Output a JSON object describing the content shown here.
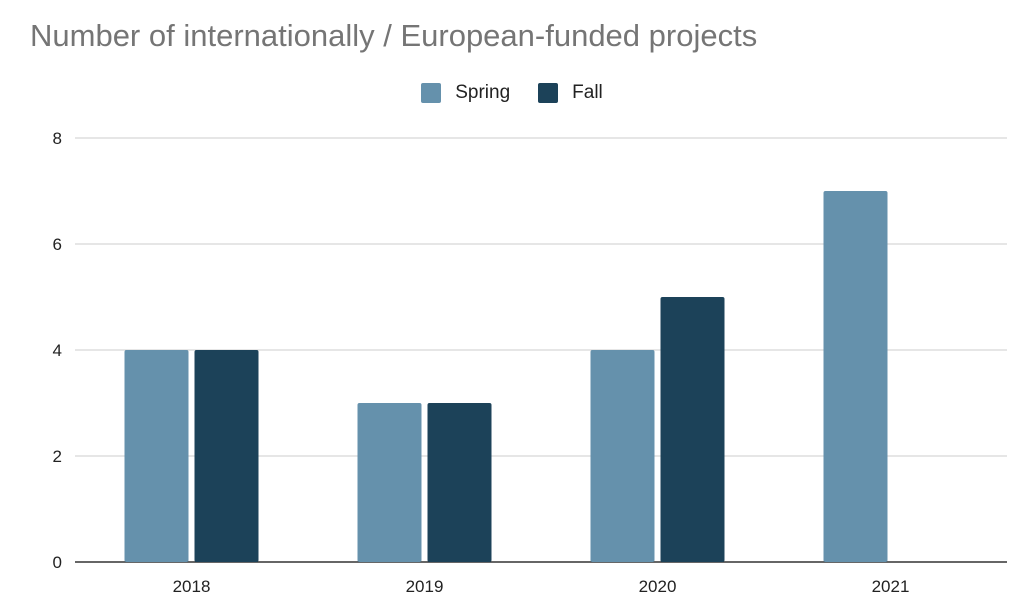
{
  "chart_data": {
    "type": "bar",
    "title": "Number of internationally / European-funded projects",
    "xlabel": "",
    "ylabel": "",
    "categories": [
      "2018",
      "2019",
      "2020",
      "2021"
    ],
    "series": [
      {
        "name": "Spring",
        "values": [
          4,
          3,
          4,
          7
        ],
        "color": "#6591ac"
      },
      {
        "name": "Fall",
        "values": [
          4,
          3,
          5,
          null
        ],
        "color": "#1c4259"
      }
    ],
    "ylim": [
      0,
      8
    ],
    "yticks": [
      "0",
      "2",
      "4",
      "6",
      "8"
    ],
    "grid": true,
    "legend_position": "top-center"
  }
}
